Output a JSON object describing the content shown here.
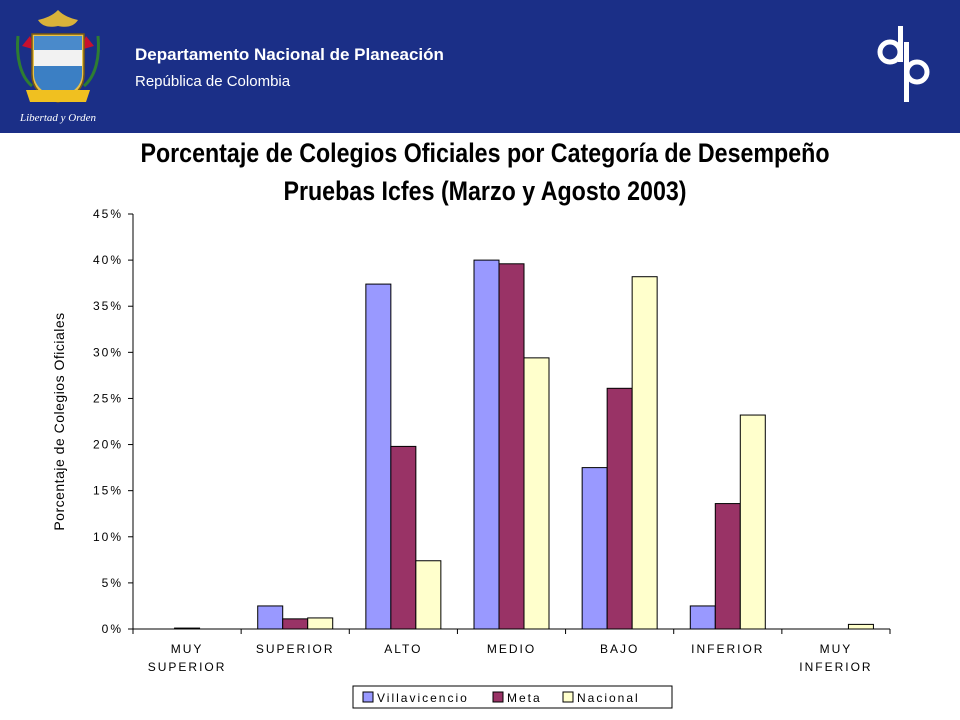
{
  "header": {
    "org_title": "Departamento Nacional de Planeación",
    "org_subtitle": "República de Colombia",
    "seal_motto": "Libertad y Orden",
    "logo_icon": "dnp-logo",
    "background_color": "#1b2f87"
  },
  "chart_data": {
    "type": "bar",
    "title": "Porcentaje de Colegios Oficiales por Categoría de Desempeño  Pruebas Icfes (Marzo y Agosto 2003)",
    "ylabel": "Porcentaje de Colegios Oficiales",
    "xlabel": "",
    "ylim": [
      0,
      45
    ],
    "yticks": [
      "0%",
      "5%",
      "10%",
      "15%",
      "20%",
      "25%",
      "30%",
      "35%",
      "40%",
      "45%"
    ],
    "grid": false,
    "legend_position": "bottom",
    "categories": [
      [
        "MUY",
        "SUPERIOR"
      ],
      [
        "SUPERIOR"
      ],
      [
        "ALTO"
      ],
      [
        "MEDIO"
      ],
      [
        "BAJO"
      ],
      [
        "INFERIOR"
      ],
      [
        "MUY",
        "INFERIOR"
      ]
    ],
    "series": [
      {
        "name": "Villavicencio",
        "color": "#9999ff",
        "values": [
          0,
          2.5,
          37.4,
          40.0,
          17.5,
          2.5,
          0
        ]
      },
      {
        "name": "Meta",
        "color": "#993366",
        "values": [
          0.1,
          1.1,
          19.8,
          39.6,
          26.1,
          13.6,
          0
        ]
      },
      {
        "name": "Nacional",
        "color": "#ffffcc",
        "values": [
          0,
          1.2,
          7.4,
          29.4,
          38.2,
          23.2,
          0.5
        ]
      }
    ]
  }
}
